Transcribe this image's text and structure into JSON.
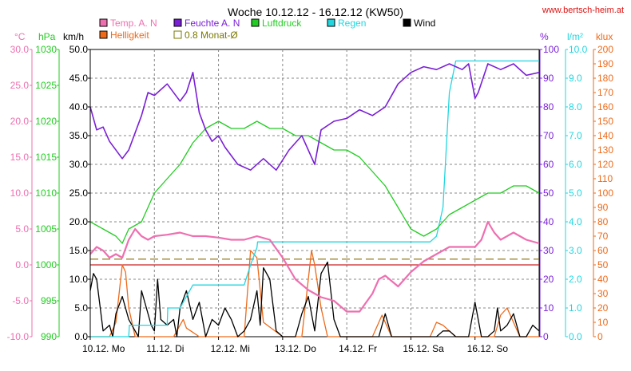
{
  "title": "Woche 10.12.12 - 16.12.12 (KW50)",
  "site": "www.bertsch-heim.at",
  "colors": {
    "temp": "#ee6fb0",
    "light": "#ee6a1a",
    "humidity": "#7a1fd6",
    "pressure": "#22cc22",
    "rain": "#22d6e0",
    "wind": "#000000",
    "avg": "#7a7a00",
    "site": "#dd1111",
    "hline_red": "#cc2222",
    "hline_olive": "#8a6a00"
  },
  "legend": [
    {
      "name": "Temp. A. N",
      "color": "#ee6fb0"
    },
    {
      "name": "Helligkeit",
      "color": "#ee6a1a"
    },
    {
      "name": "Feuchte A. N",
      "color": "#7a1fd6"
    },
    {
      "name": "0.8 Monat-Ø",
      "color": "#7a7a00"
    },
    {
      "name": "Luftdruck",
      "color": "#22cc22"
    },
    {
      "name": "Regen",
      "color": "#22d6e0"
    },
    {
      "name": "Wind",
      "color": "#000000"
    }
  ],
  "axes": {
    "temp": {
      "unit": "°C",
      "ticks": [
        "30.0",
        "25.0",
        "20.0",
        "15.0",
        "10.0",
        "5.0",
        "0.0",
        "-5.0",
        "-10.0"
      ]
    },
    "pressure": {
      "unit": "hPa",
      "ticks": [
        "1030",
        "1025",
        "1020",
        "1015",
        "1010",
        "1005",
        "1000",
        "995",
        "990"
      ]
    },
    "wind": {
      "unit": "km/h",
      "ticks": [
        "50.0",
        "45.0",
        "40.0",
        "35.0",
        "30.0",
        "25.0",
        "20.0",
        "15.0",
        "10.0",
        "5.0",
        "0.0"
      ]
    },
    "humidity": {
      "unit": "%",
      "ticks": [
        "100",
        "90",
        "80",
        "70",
        "60",
        "50",
        "40",
        "30",
        "20",
        "10",
        "0"
      ]
    },
    "rain": {
      "unit": "l/m²",
      "ticks": [
        "10.0",
        "9.0",
        "8.0",
        "7.0",
        "6.0",
        "5.0",
        "4.0",
        "3.0",
        "2.0",
        "1.0",
        "0.0"
      ]
    },
    "light": {
      "unit": "klux",
      "ticks": [
        "200",
        "190",
        "180",
        "170",
        "160",
        "150",
        "140",
        "130",
        "120",
        "110",
        "100",
        "90",
        "80",
        "70",
        "60",
        "50",
        "40",
        "30",
        "20",
        "10",
        "0"
      ]
    }
  },
  "chart_data": {
    "type": "line",
    "title": "Woche 10.12.12 - 16.12.12 (KW50)",
    "x_labels": [
      "10.12.  Mo",
      "11.12.  Di",
      "12.12.  Mi",
      "13.12.  Do",
      "14.12.  Fr",
      "15.12.  Sa",
      "16.12.  So"
    ],
    "x_unit_note": "x in days from 10.12. 00:00",
    "xlim": [
      0,
      7
    ],
    "reference_lines": {
      "temp_zero": 0.0,
      "avg_line_km_h": 13.5
    },
    "series": [
      {
        "name": "Temp. A. N",
        "axis": "temp",
        "ylim": [
          -10,
          30
        ],
        "x": [
          0,
          0.1,
          0.2,
          0.3,
          0.4,
          0.5,
          0.6,
          0.7,
          0.8,
          0.9,
          1.0,
          1.2,
          1.4,
          1.6,
          1.8,
          2.0,
          2.2,
          2.4,
          2.6,
          2.8,
          3.0,
          3.2,
          3.4,
          3.6,
          3.8,
          4.0,
          4.2,
          4.4,
          4.5,
          4.6,
          4.8,
          5.0,
          5.2,
          5.4,
          5.6,
          5.8,
          6.0,
          6.1,
          6.2,
          6.3,
          6.4,
          6.6,
          6.8,
          7.0
        ],
        "y": [
          1.5,
          2.5,
          2.0,
          1.0,
          1.5,
          1.0,
          3.5,
          5.0,
          4.0,
          3.5,
          4.0,
          4.2,
          4.5,
          4.0,
          4.0,
          3.8,
          3.5,
          3.5,
          4.0,
          3.5,
          1.0,
          -2.0,
          -3.5,
          -4.5,
          -5.0,
          -6.5,
          -6.5,
          -4.0,
          -2.0,
          -1.5,
          -3.0,
          -1.0,
          0.5,
          1.5,
          2.5,
          2.5,
          2.5,
          3.5,
          6.0,
          4.5,
          3.5,
          4.5,
          3.5,
          3.0
        ]
      },
      {
        "name": "Feuchte A. N",
        "axis": "humidity",
        "ylim": [
          0,
          100
        ],
        "x": [
          0,
          0.1,
          0.2,
          0.3,
          0.5,
          0.6,
          0.8,
          0.9,
          1.0,
          1.2,
          1.4,
          1.5,
          1.6,
          1.7,
          1.8,
          1.9,
          2.0,
          2.1,
          2.3,
          2.5,
          2.7,
          2.9,
          3.1,
          3.3,
          3.5,
          3.6,
          3.8,
          4.0,
          4.2,
          4.4,
          4.6,
          4.8,
          5.0,
          5.2,
          5.4,
          5.6,
          5.8,
          5.9,
          6.0,
          6.05,
          6.2,
          6.4,
          6.6,
          6.8,
          7.0
        ],
        "y": [
          80,
          72,
          73,
          68,
          62,
          65,
          77,
          85,
          84,
          88,
          82,
          85,
          92,
          78,
          72,
          68,
          70,
          66,
          60,
          58,
          62,
          58,
          65,
          70,
          60,
          72,
          75,
          76,
          79,
          77,
          80,
          88,
          92,
          94,
          93,
          95,
          93,
          95,
          83,
          85,
          95,
          93,
          95,
          91,
          92
        ]
      },
      {
        "name": "Luftdruck",
        "axis": "pressure",
        "ylim": [
          990,
          1030
        ],
        "x": [
          0,
          0.2,
          0.4,
          0.5,
          0.6,
          0.8,
          1.0,
          1.2,
          1.4,
          1.6,
          1.8,
          2.0,
          2.2,
          2.4,
          2.6,
          2.8,
          3.0,
          3.2,
          3.4,
          3.6,
          3.8,
          4.0,
          4.2,
          4.4,
          4.6,
          4.8,
          5.0,
          5.2,
          5.4,
          5.6,
          5.8,
          6.0,
          6.2,
          6.4,
          6.6,
          6.8,
          7.0
        ],
        "y": [
          1006,
          1005,
          1004,
          1003,
          1005,
          1006,
          1010,
          1012,
          1014,
          1017,
          1019,
          1020,
          1019,
          1019,
          1020,
          1019,
          1019,
          1018,
          1018,
          1017,
          1016,
          1016,
          1015,
          1013,
          1011,
          1008,
          1005,
          1004,
          1005,
          1007,
          1008,
          1009,
          1010,
          1010,
          1011,
          1011,
          1010
        ]
      },
      {
        "name": "Regen",
        "axis": "rain",
        "ylim": [
          0,
          10
        ],
        "x": [
          0,
          0.6,
          0.61,
          0.8,
          1.0,
          1.2,
          1.21,
          1.4,
          1.6,
          1.8,
          1.81,
          2.0,
          2.4,
          2.5,
          2.6,
          2.61,
          3.0,
          4.0,
          5.0,
          5.3,
          5.4,
          5.5,
          5.6,
          5.7,
          5.8,
          6.0,
          6.3,
          6.6,
          7.0
        ],
        "y": [
          0,
          0,
          0.4,
          0.4,
          0.4,
          0.4,
          1.0,
          1.0,
          1.8,
          1.8,
          1.8,
          1.8,
          1.8,
          2.5,
          3.1,
          3.3,
          3.3,
          3.3,
          3.3,
          3.3,
          3.5,
          4.5,
          8.5,
          9.6,
          9.6,
          9.6,
          9.6,
          9.6,
          9.6
        ]
      },
      {
        "name": "Wind",
        "axis": "wind",
        "ylim": [
          0,
          50
        ],
        "x": [
          0,
          0.05,
          0.1,
          0.2,
          0.3,
          0.35,
          0.4,
          0.5,
          0.6,
          0.7,
          0.75,
          0.8,
          0.9,
          0.95,
          1.0,
          1.05,
          1.1,
          1.2,
          1.3,
          1.35,
          1.4,
          1.5,
          1.6,
          1.7,
          1.8,
          1.9,
          2.0,
          2.1,
          2.2,
          2.3,
          2.4,
          2.5,
          2.6,
          2.65,
          2.7,
          2.8,
          2.9,
          3.0,
          3.1,
          3.2,
          3.3,
          3.4,
          3.5,
          3.6,
          3.7,
          3.8,
          3.9,
          4.0,
          4.5,
          4.6,
          4.7,
          5.0,
          5.3,
          5.4,
          5.5,
          5.6,
          5.7,
          5.8,
          5.9,
          6.0,
          6.05,
          6.1,
          6.2,
          6.3,
          6.35,
          6.4,
          6.5,
          6.6,
          6.7,
          6.8,
          6.9,
          7.0
        ],
        "y": [
          8,
          11,
          10,
          1,
          2,
          0,
          4,
          7,
          3,
          1,
          0,
          8,
          4,
          2,
          1,
          10,
          3,
          2,
          3,
          0,
          5,
          8,
          3,
          6,
          0,
          3,
          2,
          5,
          3,
          0,
          1,
          3,
          8,
          2,
          12,
          10,
          1,
          0,
          0,
          0,
          4,
          7,
          1,
          11,
          13,
          3,
          0,
          0,
          0,
          4,
          0,
          0,
          0,
          0,
          1,
          1,
          0,
          0,
          0,
          6,
          3,
          0,
          0,
          1,
          5,
          1,
          2,
          4,
          0,
          0,
          2,
          1
        ]
      },
      {
        "name": "Helligkeit",
        "axis": "light",
        "ylim": [
          0,
          200
        ],
        "x": [
          0,
          0.3,
          0.4,
          0.5,
          0.55,
          0.6,
          0.7,
          0.8,
          0.9,
          1.0,
          1.3,
          1.4,
          1.45,
          1.5,
          1.6,
          1.7,
          2.0,
          2.4,
          2.45,
          2.5,
          2.6,
          2.7,
          3.0,
          3.3,
          3.4,
          3.45,
          3.5,
          3.6,
          3.7,
          4.0,
          4.4,
          4.5,
          4.55,
          4.6,
          4.7,
          5.0,
          5.3,
          5.4,
          5.5,
          5.6,
          5.7,
          6.0,
          6.3,
          6.4,
          6.5,
          6.6,
          6.7,
          7.0
        ],
        "y": [
          0,
          0,
          10,
          50,
          45,
          20,
          0,
          0,
          0,
          0,
          0,
          8,
          12,
          6,
          3,
          0,
          0,
          0,
          30,
          60,
          55,
          10,
          0,
          0,
          40,
          60,
          50,
          20,
          0,
          0,
          0,
          10,
          15,
          10,
          0,
          0,
          0,
          10,
          8,
          4,
          0,
          0,
          0,
          15,
          20,
          10,
          0,
          0
        ]
      }
    ]
  }
}
